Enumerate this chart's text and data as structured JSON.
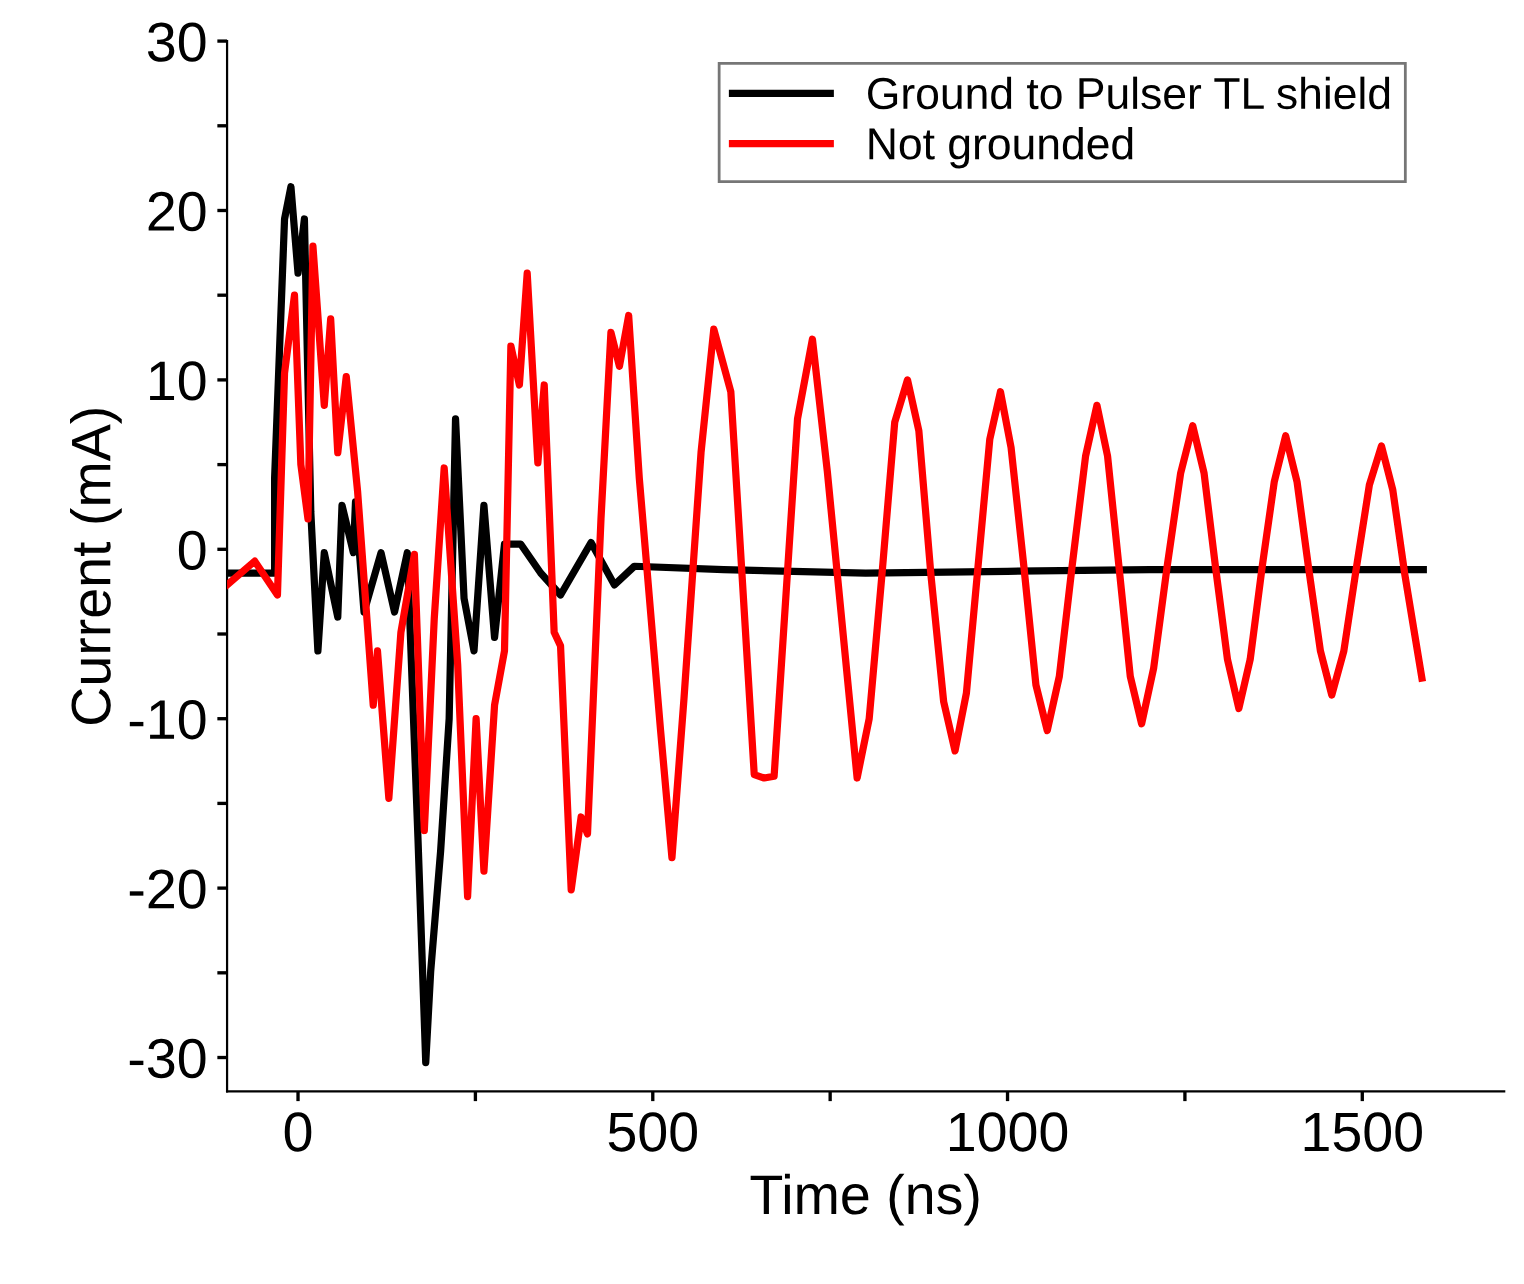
{
  "chart_data": {
    "type": "line",
    "xlabel": "Time (ns)",
    "ylabel": "Current (mA)",
    "xlim": [
      -100,
      1700
    ],
    "ylim": [
      -32,
      30
    ],
    "xticks": [
      0,
      {
        "value": 250,
        "label": null
      },
      500,
      {
        "value": 750,
        "label": null
      },
      1000,
      {
        "value": 1250,
        "label": null
      },
      1500
    ],
    "yticks": [
      -30,
      {
        "value": -25,
        "label": null
      },
      -20,
      {
        "value": -15,
        "label": null
      },
      -10,
      {
        "value": -5,
        "label": null
      },
      0,
      {
        "value": 5,
        "label": null
      },
      10,
      {
        "value": 15,
        "label": null
      },
      20,
      {
        "value": 25,
        "label": null
      },
      30
    ],
    "grid": false,
    "legend": "top right",
    "line_style": "solid",
    "marker": "none",
    "series": [
      {
        "name": "Ground to Pulser TL shield",
        "color": "#000000",
        "x": [
          -100,
          -33,
          -33,
          -19,
          -10,
          0,
          9,
          18,
          28,
          37,
          56,
          62,
          78,
          81,
          93,
          117,
          136,
          154,
          169,
          180,
          187,
          201,
          213,
          222,
          234,
          248,
          262,
          277,
          291,
          314,
          342,
          370,
          413,
          446,
          474,
          600,
          800,
          1000,
          1200,
          1400,
          1586
        ],
        "values": [
          -1.4,
          -1.4,
          4.2,
          19.5,
          21.4,
          16.3,
          19.5,
          2.2,
          -6,
          -0.2,
          -4,
          2.6,
          -0.2,
          2.8,
          -3.7,
          -0.2,
          -3.7,
          -0.2,
          -17,
          -30.3,
          -24.9,
          -17.8,
          -10,
          7.7,
          -2.9,
          -6,
          2.6,
          -5.2,
          0.3,
          0.3,
          -1.4,
          -2.7,
          0.4,
          -2.1,
          -1,
          -1.2,
          -1.4,
          -1.3,
          -1.2,
          -1.2,
          -1.2
        ]
      },
      {
        "name": "Not grounded",
        "color": "#ff0000",
        "x": [
          -100,
          -61,
          -29,
          -19,
          -5,
          4,
          14,
          21,
          37,
          46,
          56,
          68,
          84,
          106,
          112,
          128,
          145,
          164,
          178,
          192,
          206,
          225,
          239,
          251,
          262,
          277,
          291,
          300,
          312,
          323,
          338,
          347,
          361,
          370,
          385,
          399,
          408,
          427,
          441,
          453,
          466,
          481,
          511,
          527,
          544,
          568,
          586,
          610,
          643,
          657,
          671,
          704,
          725,
          746,
          788,
          805,
          823,
          841,
          859,
          875,
          892,
          910,
          926,
          942,
          958,
          975,
          990,
          1005,
          1023,
          1040,
          1056,
          1073,
          1091,
          1110,
          1126,
          1141,
          1157,
          1173,
          1189,
          1206,
          1225,
          1244,
          1261,
          1277,
          1293,
          1310,
          1326,
          1342,
          1359,
          1376,
          1392,
          1408,
          1424,
          1441,
          1457,
          1474,
          1492,
          1510,
          1527,
          1543,
          1560,
          1584
        ],
        "values": [
          -2.1,
          -0.7,
          -2.7,
          10.4,
          15,
          5,
          1.8,
          17.9,
          8.5,
          13.6,
          5.7,
          10.2,
          3.4,
          -9.2,
          -6,
          -14.7,
          -4.9,
          -0.3,
          -16.6,
          -4.1,
          4.8,
          -6.8,
          -20.5,
          -10,
          -19,
          -9.2,
          -6,
          12,
          9.7,
          16.3,
          5.1,
          9.7,
          -4.9,
          -5.7,
          -20.1,
          -15.8,
          -16.8,
          1.8,
          12.8,
          10.8,
          13.8,
          4.2,
          -10.7,
          -18.2,
          -8.8,
          5.7,
          13,
          9.3,
          -13.3,
          -13.5,
          -13.4,
          7.7,
          12.4,
          4.6,
          -13.5,
          -10,
          -1.5,
          7.5,
          10,
          7,
          -1.5,
          -9,
          -11.9,
          -8.5,
          -1.2,
          6.5,
          9.3,
          6,
          -1,
          -8,
          -10.7,
          -7.5,
          -1,
          5.5,
          8.5,
          5.5,
          -1,
          -7.5,
          -10.3,
          -7,
          -1,
          4.5,
          7.3,
          4.5,
          -1,
          -6.5,
          -9.4,
          -6.5,
          -1,
          4,
          6.7,
          4,
          -1,
          -6,
          -8.6,
          -6,
          -1,
          3.8,
          6.1,
          3.5,
          -1.5,
          -7.6
        ]
      }
    ]
  }
}
